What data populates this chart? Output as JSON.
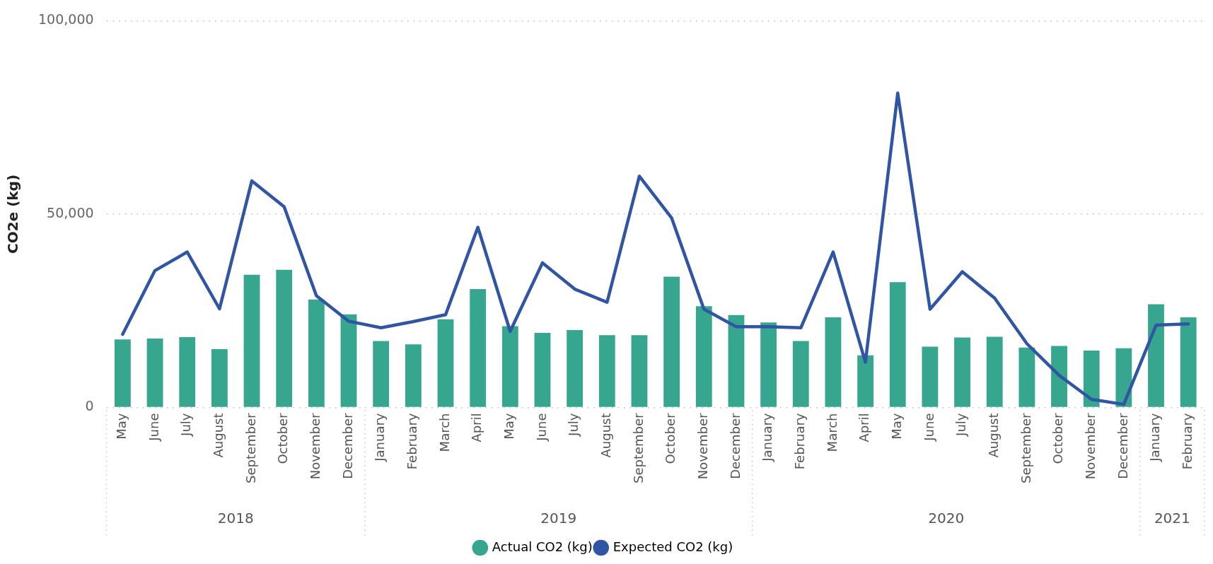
{
  "chart_data": {
    "type": "bar",
    "ylabel": "CO2e (kg)",
    "categories": [
      "May",
      "June",
      "July",
      "August",
      "September",
      "October",
      "November",
      "December",
      "January",
      "February",
      "March",
      "April",
      "May",
      "June",
      "July",
      "August",
      "September",
      "October",
      "November",
      "December",
      "January",
      "February",
      "March",
      "April",
      "May",
      "June",
      "July",
      "August",
      "September",
      "October",
      "November",
      "December",
      "January",
      "February"
    ],
    "annotations": [
      "2018",
      "2019",
      "2020",
      "2021"
    ],
    "series": [
      {
        "name": "Actual CO2 (kg)",
        "color": "#37a68f",
        "values": [
          17600,
          17800,
          18200,
          15100,
          34300,
          35600,
          27900,
          24100,
          17200,
          16300,
          22800,
          30600,
          21000,
          19300,
          20000,
          18700,
          18700,
          33800,
          26200,
          23900,
          22000,
          17200,
          23300,
          13500,
          32400,
          15700,
          18100,
          18300,
          15500,
          15900,
          14700,
          15300,
          26700,
          23300
        ]
      },
      {
        "name": "Expected CO2 (kg)",
        "type": "line",
        "color": "#3055a5",
        "values": [
          18900,
          35400,
          40200,
          25500,
          58600,
          51900,
          28900,
          22300,
          20600,
          22200,
          24000,
          46600,
          19700,
          37400,
          30600,
          27200,
          59800,
          49000,
          25400,
          20900,
          20900,
          20600,
          40200,
          11700,
          81300,
          25400,
          35100,
          28300,
          16500,
          8300,
          2100,
          800,
          21300,
          21600
        ]
      }
    ],
    "ylim": [
      0,
      100000
    ],
    "yticks": [
      0,
      {
        "value": 50000,
        "label": "50,000"
      },
      {
        "value": 100000,
        "label": "100,000"
      }
    ],
    "grid": "y",
    "legend": "bottom",
    "marker": "none"
  }
}
